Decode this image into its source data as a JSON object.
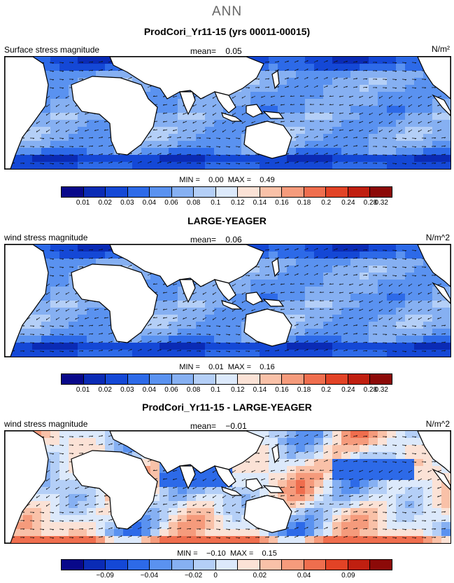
{
  "title": "ANN",
  "palette": [
    "#08088a",
    "#0a2bb5",
    "#1448d6",
    "#2d6ae8",
    "#5a92f0",
    "#86b0f2",
    "#b4cff7",
    "#dce9fb",
    "#fbe2d6",
    "#f9c1a8",
    "#f59b7c",
    "#ef6e4e",
    "#e24326",
    "#c01f10",
    "#8c0a08"
  ],
  "land_color": "#ffffff",
  "panels": [
    {
      "title": "ProdCori_Yr11-15 (yrs 00011-00015)",
      "variable": "Surface stress magnitude",
      "mean_label": "mean=",
      "mean_value": "0.05",
      "unit": "N/m²",
      "min_label": "MIN =",
      "min_value": "0.00",
      "max_label": "MAX =",
      "max_value": "0.49",
      "ticks": [
        "0.01",
        "0.02",
        "0.03",
        "0.04",
        "0.06",
        "0.08",
        "0.1",
        "0.12",
        "0.14",
        "0.16",
        "0.18",
        "0.2",
        "0.24",
        "0.28",
        "0.32"
      ],
      "field": "full"
    },
    {
      "title": "LARGE-YEAGER",
      "variable": "wind stress magnitude",
      "mean_label": "mean=",
      "mean_value": "0.06",
      "unit": "N/m^2",
      "min_label": "MIN =",
      "min_value": "0.01",
      "max_label": "MAX =",
      "max_value": "0.16",
      "ticks": [
        "0.01",
        "0.02",
        "0.03",
        "0.04",
        "0.06",
        "0.08",
        "0.1",
        "0.12",
        "0.14",
        "0.16",
        "0.18",
        "0.2",
        "0.24",
        "0.28",
        "0.32"
      ],
      "field": "full"
    },
    {
      "title": "ProdCori_Yr11-15 - LARGE-YEAGER",
      "variable": "wind stress magnitude",
      "mean_label": "mean=",
      "mean_value": "−0.01",
      "unit": "N/m^2",
      "min_label": "MIN =",
      "min_value": "−0.10",
      "max_label": "MAX =",
      "max_value": "0.15",
      "ticks": [
        "−0.09",
        "−0.04",
        "−0.02",
        "0",
        "0.02",
        "0.04",
        "0.09"
      ],
      "field": "diff"
    }
  ]
}
